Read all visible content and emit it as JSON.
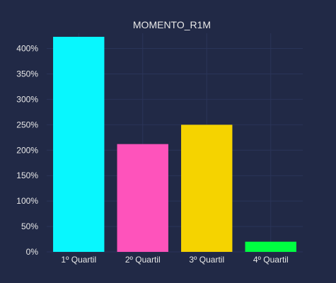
{
  "chart_data": {
    "type": "bar",
    "title": "MOMENTO_R1M",
    "xlabel": "",
    "ylabel": "",
    "categories": [
      "1º Quartil",
      "2º Quartil",
      "3º Quartil",
      "4º Quartil"
    ],
    "values": [
      4.23,
      2.12,
      2.5,
      0.2
    ],
    "colors": [
      "#08F7FE",
      "#FE53BB",
      "#F5D300",
      "#00FF41"
    ],
    "ylim": [
      0,
      4.3
    ],
    "y_ticks": [
      0,
      0.5,
      1,
      1.5,
      2,
      2.5,
      3,
      3.5,
      4
    ],
    "y_tick_labels": [
      "0%",
      "50%",
      "100%",
      "150%",
      "200%",
      "250%",
      "300%",
      "350%",
      "400%"
    ],
    "grid": true,
    "legend": false
  },
  "colors": {
    "background": "#212946",
    "grid": "#2A3459",
    "text": "#E8E8E8"
  }
}
